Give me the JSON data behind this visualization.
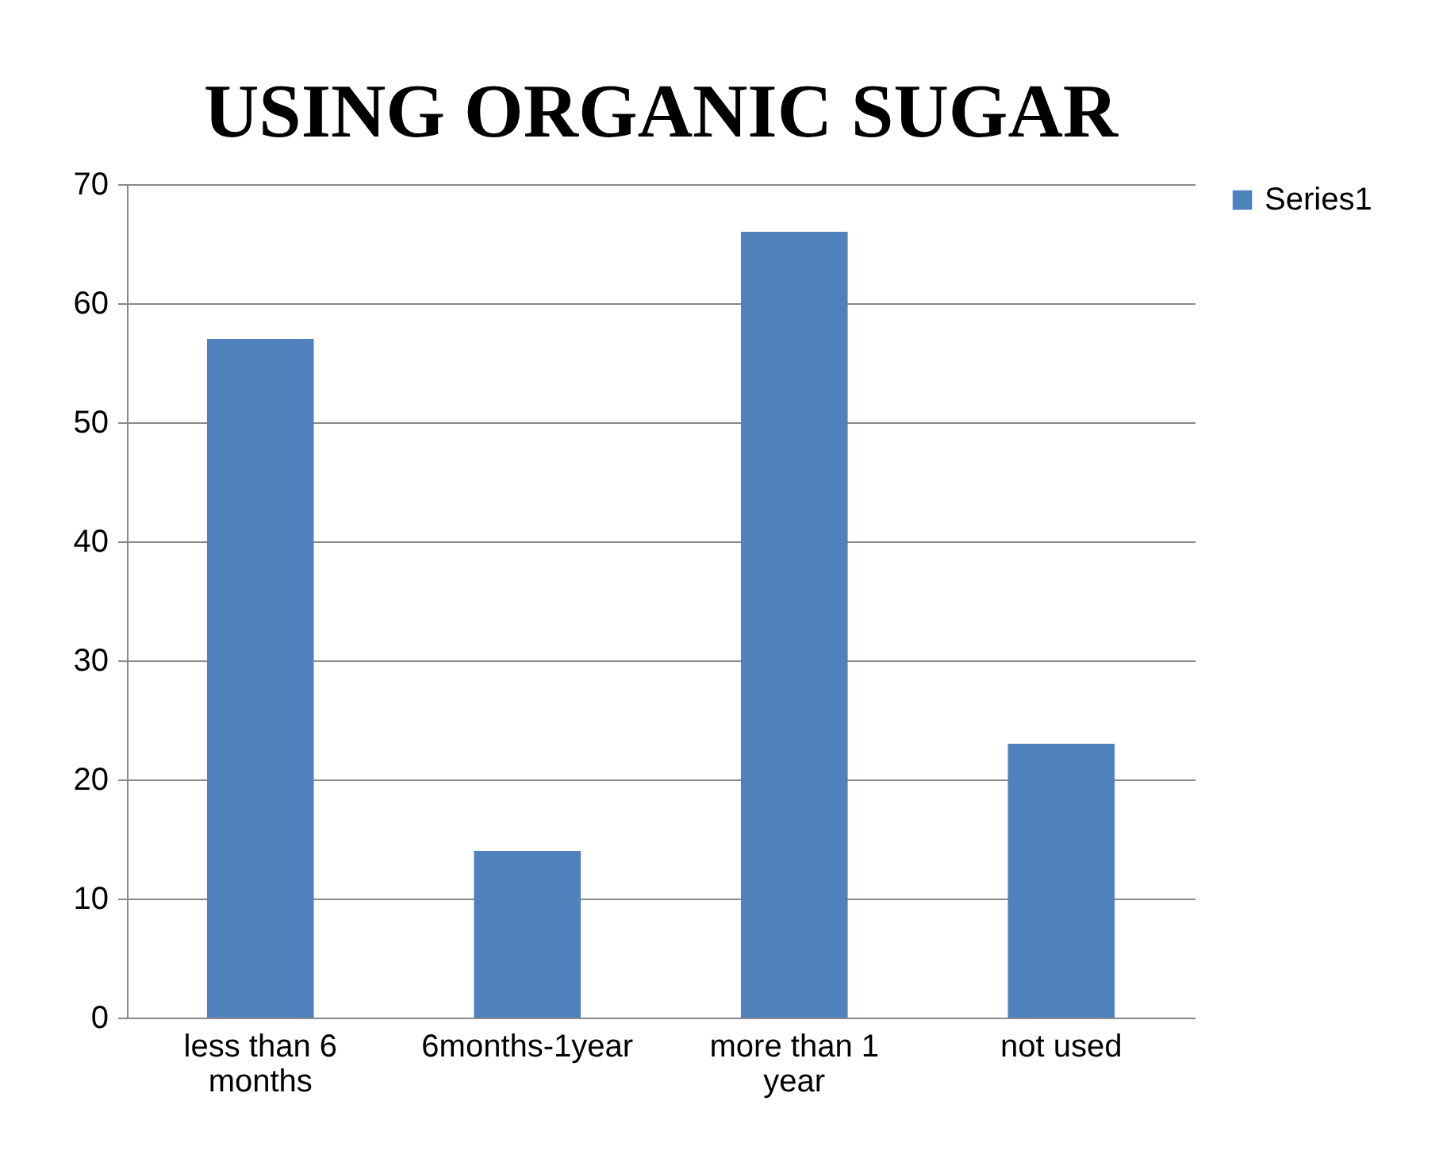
{
  "chart_data": {
    "type": "bar",
    "title": "USING ORGANIC SUGAR",
    "categories": [
      "less than 6 months",
      "6months-1year",
      "more than 1 year",
      "not used"
    ],
    "series": [
      {
        "name": "Series1",
        "color": "#4f81bd",
        "values": [
          57,
          14,
          66,
          23
        ]
      }
    ],
    "ylim": [
      0,
      70
    ],
    "yticks": [
      0,
      10,
      20,
      30,
      40,
      50,
      60,
      70
    ],
    "grid": "y",
    "legend": "right"
  }
}
